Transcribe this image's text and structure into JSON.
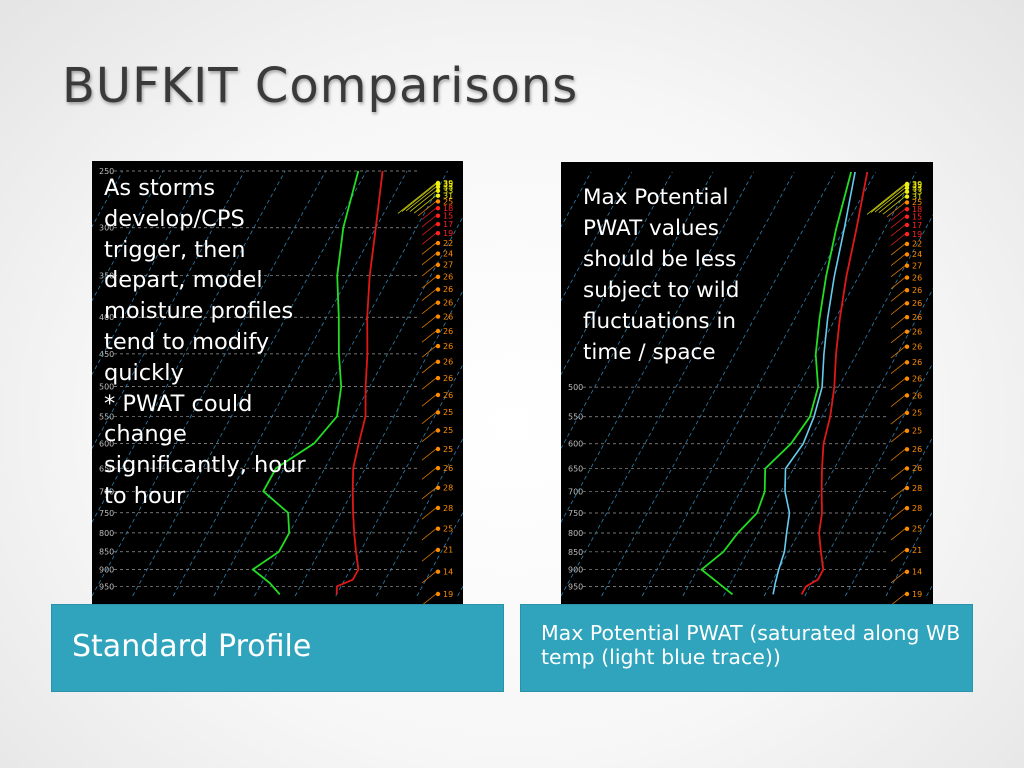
{
  "slide": {
    "title": "BUFKIT Comparisons",
    "left": {
      "overlay_text": "As storms\ndevelop/CPS\ntrigger, then\ndepart, model\nmoisture profiles\ntend to modify\nquickly\n   * PWAT could\nchange\nsignificantly, hour\nto hour",
      "caption": "Standard Profile"
    },
    "right": {
      "overlay_text": "Max Potential\nPWAT values\nshould be less\nsubject to wild\nfluctuations in\ntime / space",
      "caption": "Max Potential PWAT (saturated along WB temp (light blue trace))"
    }
  },
  "colors": {
    "accent": "#30a4bc",
    "temperature": "#e01818",
    "dewpoint": "#22dd22",
    "wetbulb": "#66ccee",
    "isotherm": "#2e7fae",
    "barb_high": "#f0f010",
    "barb_mid": "#ff8c00",
    "barb_low": "#ff2020"
  },
  "chart_data": [
    {
      "type": "line",
      "panel": "left",
      "y_axis_labels": [
        250,
        300,
        350,
        400,
        450,
        500,
        550,
        600,
        650,
        700,
        750,
        800,
        850,
        900,
        950
      ],
      "ylim": [
        250,
        980
      ],
      "xlim": [
        -50,
        30
      ],
      "series": [
        {
          "key": "temperature",
          "pressure": [
            250,
            300,
            350,
            400,
            450,
            500,
            550,
            600,
            650,
            700,
            750,
            800,
            850,
            900,
            930,
            950,
            975
          ],
          "value": [
            -36,
            -30,
            -25,
            -20,
            -15,
            -11,
            -7,
            -5,
            -3,
            0,
            3,
            6,
            9,
            12,
            12,
            9,
            10
          ]
        },
        {
          "key": "dewpoint",
          "pressure": [
            250,
            300,
            350,
            400,
            450,
            500,
            550,
            600,
            650,
            700,
            750,
            800,
            850,
            900,
            940,
            975
          ],
          "value": [
            -42,
            -38,
            -33,
            -27,
            -22,
            -17,
            -14,
            -16,
            -22,
            -22,
            -13,
            -10,
            -10,
            -14,
            -8,
            -4
          ]
        }
      ],
      "wind_speeds": [
        39,
        35,
        33,
        33,
        31,
        25,
        18,
        15,
        17,
        19,
        22,
        24,
        27,
        26,
        26,
        26,
        26,
        26,
        26,
        26,
        26,
        26,
        25,
        25,
        25,
        26,
        28,
        28,
        25,
        21,
        14,
        19
      ]
    },
    {
      "type": "line",
      "panel": "right",
      "y_axis_labels": [
        500,
        550,
        600,
        650,
        700,
        750,
        800,
        850,
        900,
        950
      ],
      "ylim": [
        250,
        980
      ],
      "xlim": [
        -50,
        30
      ],
      "series": [
        {
          "key": "temperature",
          "pressure": [
            250,
            300,
            350,
            400,
            450,
            500,
            550,
            600,
            650,
            700,
            750,
            800,
            850,
            900,
            930,
            950,
            975
          ],
          "value": [
            -32,
            -27,
            -23,
            -19,
            -15,
            -11,
            -8,
            -6,
            -3,
            0,
            3,
            5,
            8,
            11,
            11,
            9,
            9
          ]
        },
        {
          "key": "wetbulb",
          "pressure": [
            250,
            300,
            350,
            400,
            450,
            500,
            550,
            600,
            650,
            700,
            750,
            800,
            850,
            900,
            940,
            975
          ],
          "value": [
            -35,
            -30,
            -26,
            -22,
            -18,
            -14,
            -12,
            -11,
            -12,
            -9,
            -5,
            -3,
            -1,
            0,
            1,
            2
          ]
        },
        {
          "key": "dewpoint",
          "pressure": [
            250,
            300,
            350,
            400,
            450,
            500,
            550,
            600,
            650,
            700,
            750,
            800,
            850,
            900,
            940,
            975
          ],
          "value": [
            -36,
            -32,
            -28,
            -24,
            -20,
            -15,
            -13,
            -14,
            -17,
            -14,
            -13,
            -15,
            -16,
            -19,
            -13,
            -8
          ]
        }
      ],
      "wind_speeds": [
        39,
        35,
        33,
        33,
        31,
        25,
        18,
        15,
        17,
        19,
        22,
        24,
        27,
        26,
        26,
        26,
        26,
        26,
        26,
        26,
        26,
        26,
        25,
        25,
        26,
        26,
        28,
        28,
        25,
        21,
        14,
        19
      ]
    }
  ]
}
